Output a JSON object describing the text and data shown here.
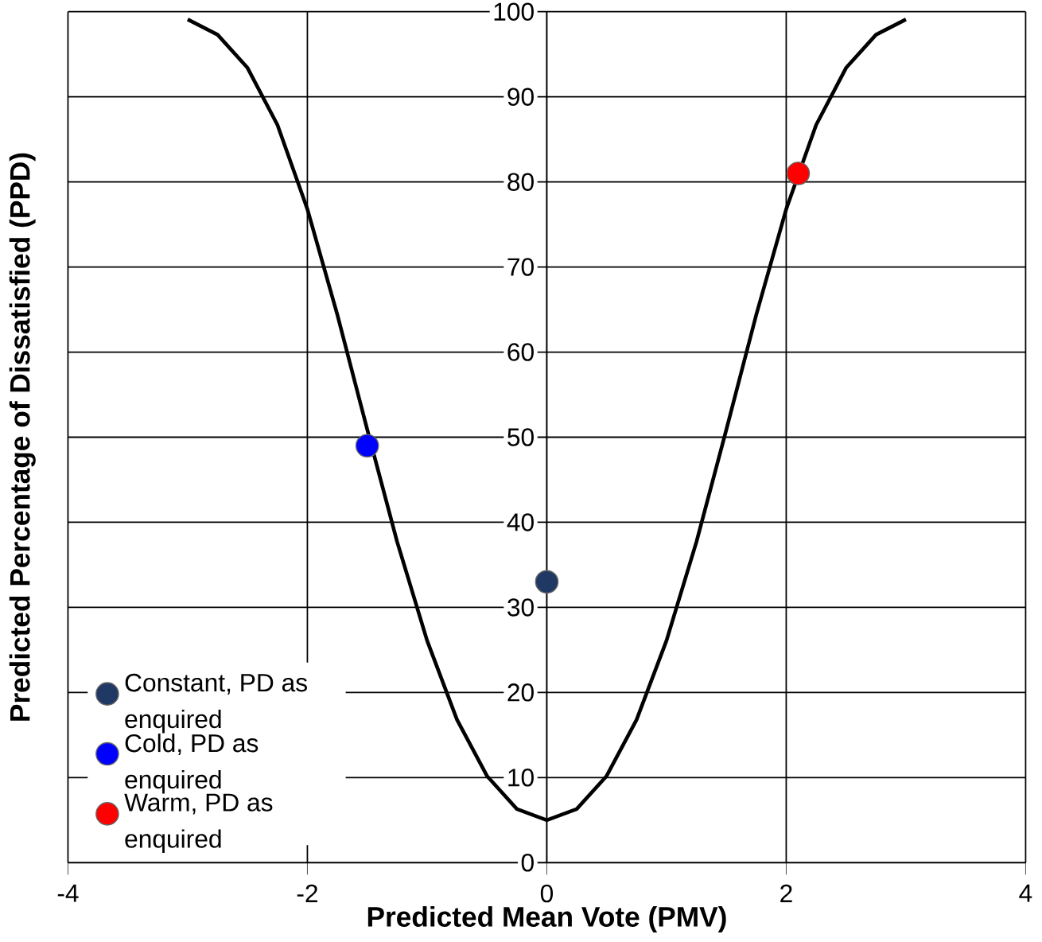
{
  "chart_data": {
    "type": "line",
    "xlabel": "Predicted Mean Vote (PMV)",
    "ylabel": "Predicted Percentage of Dissatisfied (PPD)",
    "xlim": [
      -4,
      4
    ],
    "ylim": [
      0,
      100
    ],
    "xticks": [
      -4,
      -2,
      0,
      2,
      4
    ],
    "yticks": [
      0,
      10,
      20,
      30,
      40,
      50,
      60,
      70,
      80,
      90,
      100
    ],
    "grid": true,
    "legend": "bottom left",
    "series": [
      {
        "color": "#000000",
        "line_style": "solid",
        "marker": "none",
        "x": [
          -3,
          -2.75,
          -2.5,
          -2.25,
          -2,
          -1.75,
          -1.5,
          -1.25,
          -1,
          -0.75,
          -0.5,
          -0.25,
          0,
          0.25,
          0.5,
          0.75,
          1,
          1.25,
          1.5,
          1.75,
          2,
          2.25,
          2.5,
          2.75,
          3
        ],
        "values": [
          99.1,
          97.3,
          93.4,
          86.7,
          76.8,
          64.4,
          50.9,
          37.7,
          26.1,
          16.8,
          10.2,
          6.3,
          5,
          6.3,
          10.2,
          16.8,
          26.1,
          37.7,
          50.9,
          64.4,
          76.8,
          86.7,
          93.4,
          97.3,
          99.1
        ]
      },
      {
        "type": "scatter",
        "name": "Constant, PD as enquired",
        "color": "#1f3864",
        "marker": "circle",
        "x": [
          0
        ],
        "values": [
          33
        ]
      },
      {
        "type": "scatter",
        "name": "Cold, PD as enquired",
        "color": "#0000ff",
        "marker": "circle",
        "x": [
          -1.5
        ],
        "values": [
          49
        ]
      },
      {
        "type": "scatter",
        "name": "Warm, PD as enquired",
        "color": "#ff0000",
        "marker": "circle",
        "x": [
          2.1
        ],
        "values": [
          81
        ]
      }
    ]
  }
}
